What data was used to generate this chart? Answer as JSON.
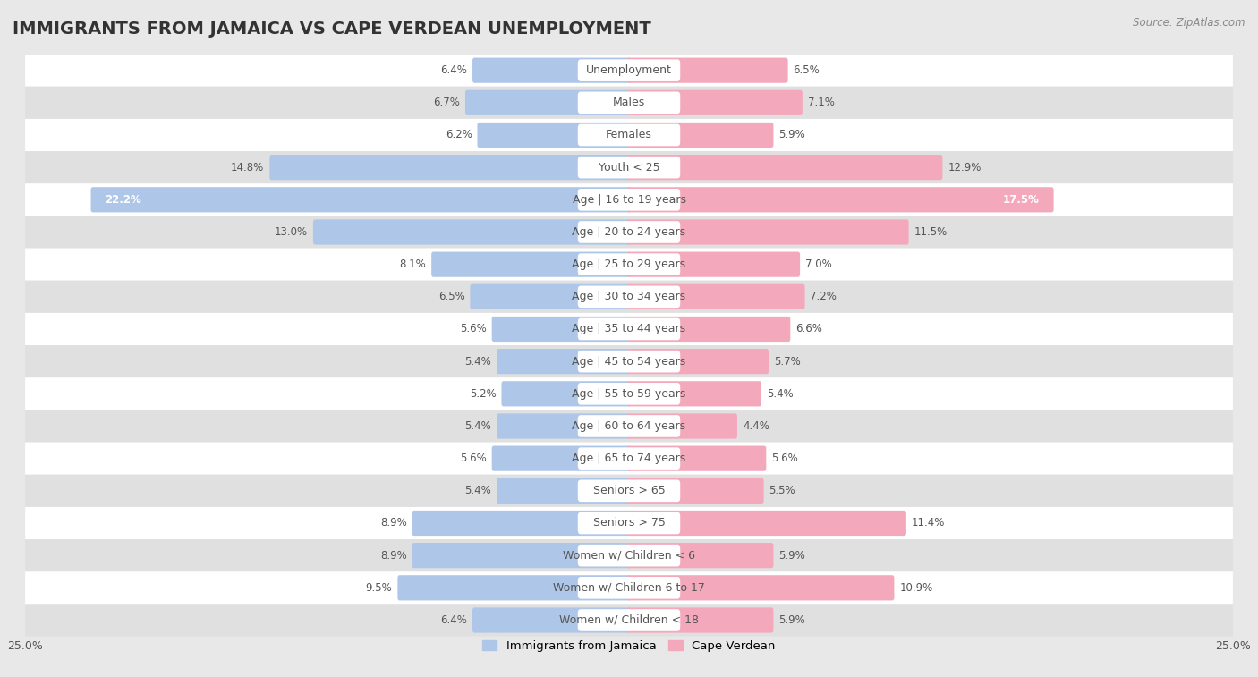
{
  "title": "IMMIGRANTS FROM JAMAICA VS CAPE VERDEAN UNEMPLOYMENT",
  "source": "Source: ZipAtlas.com",
  "categories": [
    "Unemployment",
    "Males",
    "Females",
    "Youth < 25",
    "Age | 16 to 19 years",
    "Age | 20 to 24 years",
    "Age | 25 to 29 years",
    "Age | 30 to 34 years",
    "Age | 35 to 44 years",
    "Age | 45 to 54 years",
    "Age | 55 to 59 years",
    "Age | 60 to 64 years",
    "Age | 65 to 74 years",
    "Seniors > 65",
    "Seniors > 75",
    "Women w/ Children < 6",
    "Women w/ Children 6 to 17",
    "Women w/ Children < 18"
  ],
  "jamaica_values": [
    6.4,
    6.7,
    6.2,
    14.8,
    22.2,
    13.0,
    8.1,
    6.5,
    5.6,
    5.4,
    5.2,
    5.4,
    5.6,
    5.4,
    8.9,
    8.9,
    9.5,
    6.4
  ],
  "capeverde_values": [
    6.5,
    7.1,
    5.9,
    12.9,
    17.5,
    11.5,
    7.0,
    7.2,
    6.6,
    5.7,
    5.4,
    4.4,
    5.6,
    5.5,
    11.4,
    5.9,
    10.9,
    5.9
  ],
  "jamaica_color": "#aec6e8",
  "capeverde_color": "#f4a8bc",
  "jamaica_label": "Immigrants from Jamaica",
  "capeverde_label": "Cape Verdean",
  "xlim": 25.0,
  "bg_color": "#e8e8e8",
  "bar_bg_white": "#ffffff",
  "bar_bg_gray": "#e0e0e0",
  "title_fontsize": 14,
  "label_fontsize": 9,
  "value_fontsize": 8.5,
  "pill_color": "#ffffff",
  "pill_label_color": "#555555",
  "value_color_dark": "#555555",
  "value_color_white": "#ffffff"
}
